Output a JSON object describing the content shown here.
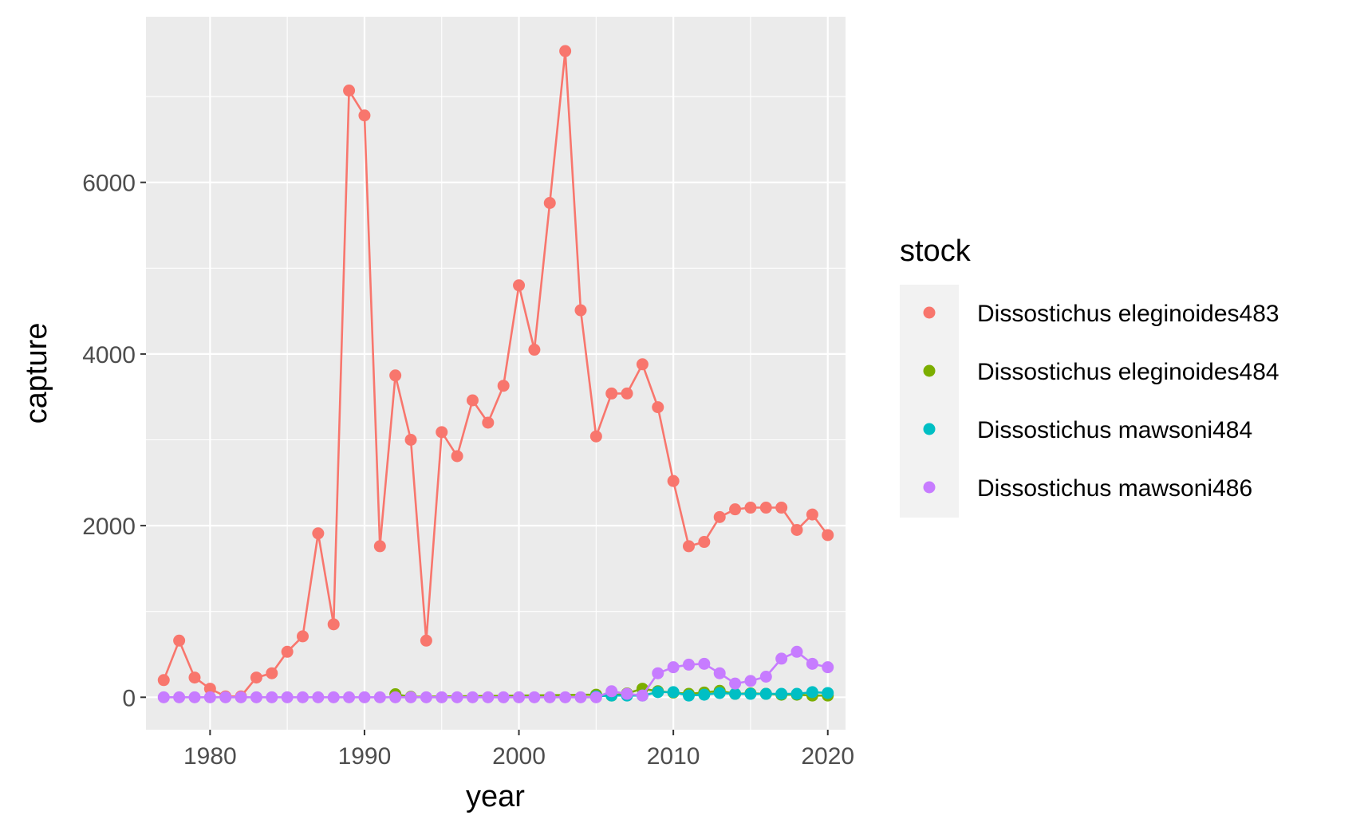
{
  "chart_data": {
    "type": "line",
    "xlabel": "year",
    "ylabel": "capture",
    "xlim": [
      1975.85,
      2021.15
    ],
    "ylim": [
      -378,
      7930
    ],
    "x_ticks": [
      1980,
      1990,
      2000,
      2010,
      2020
    ],
    "x_tick_labels": [
      "1980",
      "1990",
      "2000",
      "2010",
      "2020"
    ],
    "y_ticks": [
      0,
      2000,
      4000,
      6000
    ],
    "y_tick_labels": [
      "0",
      "2000",
      "4000",
      "6000"
    ],
    "grid": true,
    "legend": {
      "title": "stock",
      "position": "right"
    },
    "series": [
      {
        "name": "Dissostichus eleginoides483",
        "color": "#F8766D",
        "x": [
          1977,
          1978,
          1979,
          1980,
          1981,
          1982,
          1983,
          1984,
          1985,
          1986,
          1987,
          1988,
          1989,
          1990,
          1991,
          1992,
          1993,
          1994,
          1995,
          1996,
          1997,
          1998,
          1999,
          2000,
          2001,
          2002,
          2003,
          2004,
          2005,
          2006,
          2007,
          2008,
          2009,
          2010,
          2011,
          2012,
          2013,
          2014,
          2015,
          2016,
          2017,
          2018,
          2019,
          2020
        ],
        "y": [
          200,
          660,
          230,
          100,
          10,
          10,
          230,
          280,
          530,
          710,
          1910,
          850,
          7070,
          6780,
          1760,
          3750,
          3000,
          660,
          3090,
          2810,
          3460,
          3200,
          3630,
          4800,
          4050,
          5760,
          7530,
          4510,
          3040,
          3540,
          3540,
          3880,
          3380,
          2520,
          1760,
          1810,
          2100,
          2190,
          2210,
          2210,
          2210,
          1950,
          2130,
          1890
        ]
      },
      {
        "name": "Dissostichus eleginoides484",
        "color": "#7CAE00",
        "x": [
          1992,
          1993,
          2005,
          2006,
          2007,
          2008,
          2009,
          2010,
          2011,
          2012,
          2013,
          2014,
          2015,
          2016,
          2017,
          2018,
          2019,
          2020
        ],
        "y": [
          35,
          5,
          30,
          20,
          45,
          100,
          70,
          55,
          40,
          55,
          75,
          40,
          45,
          40,
          30,
          30,
          20,
          20
        ]
      },
      {
        "name": "Dissostichus mawsoni484",
        "color": "#00BFC4",
        "x": [
          2005,
          2006,
          2007,
          2008,
          2009,
          2010,
          2011,
          2012,
          2013,
          2014,
          2015,
          2016,
          2017,
          2018,
          2019,
          2020
        ],
        "y": [
          10,
          20,
          20,
          20,
          60,
          60,
          20,
          30,
          50,
          40,
          40,
          40,
          40,
          40,
          60,
          50
        ]
      },
      {
        "name": "Dissostichus mawsoni486",
        "color": "#C77CFF",
        "x": [
          1977,
          1978,
          1979,
          1980,
          1981,
          1982,
          1983,
          1984,
          1985,
          1986,
          1987,
          1988,
          1989,
          1990,
          1991,
          1992,
          1993,
          1994,
          1995,
          1996,
          1997,
          1998,
          1999,
          2000,
          2001,
          2002,
          2003,
          2004,
          2005,
          2006,
          2007,
          2008,
          2009,
          2010,
          2011,
          2012,
          2013,
          2014,
          2015,
          2016,
          2017,
          2018,
          2019,
          2020
        ],
        "y": [
          0,
          0,
          0,
          0,
          0,
          0,
          0,
          0,
          0,
          0,
          0,
          0,
          0,
          0,
          0,
          0,
          0,
          0,
          0,
          0,
          0,
          0,
          0,
          0,
          0,
          0,
          0,
          0,
          0,
          70,
          40,
          20,
          280,
          350,
          380,
          390,
          280,
          160,
          190,
          240,
          450,
          530,
          390,
          350
        ]
      }
    ]
  }
}
